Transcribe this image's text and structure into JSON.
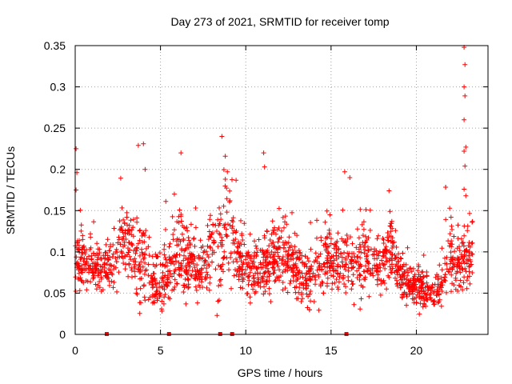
{
  "chart_data": {
    "type": "scatter",
    "title": "Day 273 of 2021, SRMTID for receiver tomp",
    "xlabel": "GPS time / hours",
    "ylabel": "SRMTID / TECUs",
    "xlim": [
      0,
      24.2
    ],
    "ylim": [
      0,
      0.35
    ],
    "xticks": [
      0,
      5,
      10,
      15,
      20
    ],
    "xtick_labels": [
      "0",
      "5",
      "10",
      "15",
      "20"
    ],
    "yticks": [
      0,
      0.05,
      0.1,
      0.15,
      0.2,
      0.25,
      0.3,
      0.35
    ],
    "ytick_labels": [
      "0",
      "0.05",
      "0.1",
      "0.15",
      "0.2",
      "0.25",
      "0.3",
      "0.35"
    ],
    "grid": true,
    "marker": "+",
    "color": "#ff0000",
    "data_gap_markers_x": [
      1.85,
      5.5,
      8.5,
      9.2,
      15.9
    ],
    "profile": {
      "hours": [
        0,
        0.5,
        1.0,
        1.5,
        2.0,
        2.5,
        3.0,
        3.5,
        4.0,
        4.5,
        5.0,
        5.5,
        6.0,
        6.5,
        7.0,
        7.5,
        8.0,
        8.5,
        9.0,
        9.5,
        10.0,
        10.5,
        11.0,
        11.5,
        12.0,
        12.5,
        13.0,
        13.5,
        14.0,
        14.5,
        15.0,
        15.5,
        16.0,
        16.5,
        17.0,
        17.5,
        18.0,
        18.5,
        19.0,
        19.5,
        20.0,
        20.5,
        21.0,
        21.5,
        22.0,
        22.5,
        23.0,
        23.3
      ],
      "median": [
        0.09,
        0.09,
        0.085,
        0.08,
        0.08,
        0.1,
        0.12,
        0.09,
        0.09,
        0.07,
        0.06,
        0.08,
        0.1,
        0.095,
        0.08,
        0.08,
        0.1,
        0.11,
        0.12,
        0.1,
        0.08,
        0.075,
        0.08,
        0.09,
        0.1,
        0.09,
        0.08,
        0.07,
        0.08,
        0.09,
        0.095,
        0.09,
        0.08,
        0.08,
        0.1,
        0.08,
        0.09,
        0.11,
        0.07,
        0.06,
        0.055,
        0.055,
        0.055,
        0.06,
        0.1,
        0.08,
        0.09,
        0.1
      ],
      "spread": [
        0.04,
        0.035,
        0.035,
        0.03,
        0.03,
        0.04,
        0.05,
        0.05,
        0.07,
        0.04,
        0.04,
        0.04,
        0.05,
        0.05,
        0.04,
        0.03,
        0.05,
        0.07,
        0.06,
        0.045,
        0.04,
        0.04,
        0.05,
        0.045,
        0.04,
        0.04,
        0.04,
        0.035,
        0.04,
        0.04,
        0.04,
        0.04,
        0.04,
        0.045,
        0.05,
        0.04,
        0.045,
        0.04,
        0.03,
        0.025,
        0.025,
        0.025,
        0.025,
        0.035,
        0.06,
        0.03,
        0.05,
        0.05
      ]
    },
    "peaks": [
      {
        "x": 0.05,
        "y": 0.225
      },
      {
        "x": 0.1,
        "y": 0.196
      },
      {
        "x": 0.05,
        "y": 0.175
      },
      {
        "x": 3.7,
        "y": 0.229
      },
      {
        "x": 4.0,
        "y": 0.231
      },
      {
        "x": 4.1,
        "y": 0.2
      },
      {
        "x": 6.2,
        "y": 0.22
      },
      {
        "x": 8.6,
        "y": 0.24
      },
      {
        "x": 8.8,
        "y": 0.216
      },
      {
        "x": 11.05,
        "y": 0.22
      },
      {
        "x": 11.1,
        "y": 0.203
      },
      {
        "x": 15.8,
        "y": 0.197
      },
      {
        "x": 16.1,
        "y": 0.19
      },
      {
        "x": 18.4,
        "y": 0.174
      },
      {
        "x": 22.8,
        "y": 0.348
      },
      {
        "x": 22.85,
        "y": 0.327
      },
      {
        "x": 22.8,
        "y": 0.3
      },
      {
        "x": 22.85,
        "y": 0.289
      },
      {
        "x": 22.8,
        "y": 0.26
      },
      {
        "x": 22.9,
        "y": 0.227
      },
      {
        "x": 22.8,
        "y": 0.222
      },
      {
        "x": 22.85,
        "y": 0.204
      },
      {
        "x": 22.8,
        "y": 0.176
      },
      {
        "x": 22.9,
        "y": 0.168
      }
    ]
  }
}
